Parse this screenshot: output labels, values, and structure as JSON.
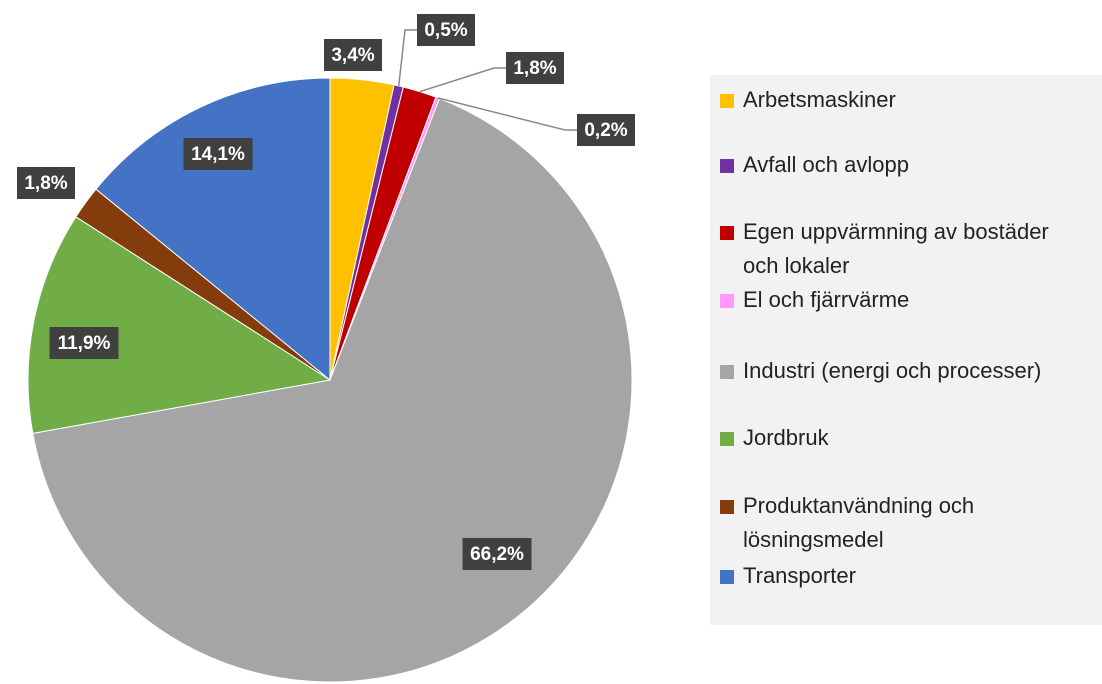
{
  "chart_data": {
    "type": "pie",
    "categories": [
      "Arbetsmaskiner",
      "Avfall och avlopp",
      "Egen uppvärmning av bostäder och lokaler",
      "El och fjärrvärme",
      "Industri (energi och processer)",
      "Jordbruk",
      "Produktanvändning och lösningsmedel",
      "Transporter"
    ],
    "values": [
      3.4,
      0.5,
      1.8,
      0.2,
      66.2,
      11.9,
      1.8,
      14.1
    ],
    "value_labels": [
      "3,4%",
      "0,5%",
      "1,8%",
      "0,2%",
      "66,2%",
      "11,9%",
      "1,8%",
      "14,1%"
    ],
    "colors": [
      "#ffc000",
      "#7030a0",
      "#c00000",
      "#ff99ff",
      "#a5a5a5",
      "#70ad47",
      "#843c0c",
      "#4472c4"
    ],
    "legend": "right"
  }
}
